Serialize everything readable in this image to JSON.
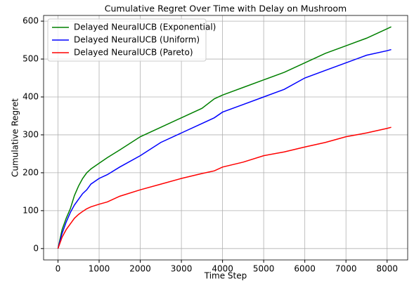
{
  "chart_data": {
    "type": "line",
    "title": "Cumulative Regret Over Time with Delay on Mushroom",
    "xlabel": "Time Step",
    "ylabel": "Cumulative Regret",
    "x": [
      0,
      100,
      200,
      300,
      400,
      500,
      600,
      700,
      800,
      1000,
      1200,
      1500,
      2000,
      2500,
      3000,
      3500,
      3800,
      4000,
      4500,
      5000,
      5500,
      6000,
      6500,
      7000,
      7500,
      8000,
      8100
    ],
    "series": [
      {
        "name": "Delayed NeuralUCB (Exponential)",
        "color": "#008000",
        "values": [
          0,
          50,
          80,
          105,
          140,
          165,
          185,
          200,
          210,
          225,
          240,
          260,
          295,
          320,
          345,
          370,
          395,
          405,
          425,
          445,
          465,
          490,
          515,
          535,
          555,
          580,
          585
        ]
      },
      {
        "name": "Delayed NeuralUCB (Uniform)",
        "color": "#0000ff",
        "values": [
          0,
          40,
          70,
          95,
          115,
          130,
          145,
          155,
          170,
          185,
          195,
          215,
          245,
          280,
          305,
          330,
          345,
          360,
          380,
          400,
          420,
          450,
          470,
          490,
          510,
          522,
          525
        ]
      },
      {
        "name": "Delayed NeuralUCB (Pareto)",
        "color": "#ff0000",
        "values": [
          0,
          30,
          50,
          65,
          80,
          90,
          98,
          105,
          110,
          117,
          123,
          138,
          155,
          170,
          185,
          198,
          205,
          215,
          228,
          245,
          255,
          268,
          280,
          295,
          305,
          317,
          320
        ]
      }
    ],
    "xlim": [
      -350,
      8500
    ],
    "ylim": [
      -30,
      615
    ],
    "xticks": [
      0,
      1000,
      2000,
      3000,
      4000,
      5000,
      6000,
      7000,
      8000
    ],
    "yticks": [
      0,
      100,
      200,
      300,
      400,
      500,
      600
    ],
    "grid": true,
    "legend": "upper left"
  }
}
